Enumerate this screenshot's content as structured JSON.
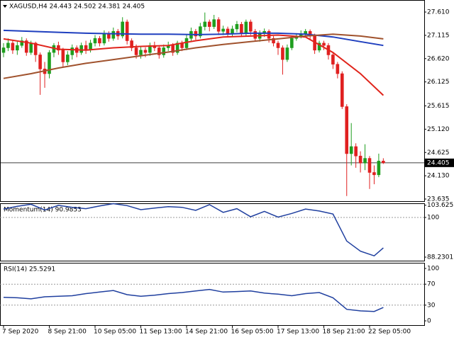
{
  "chart_data": [
    {
      "type": "candlestick",
      "title": "XAGUSD,H4  24.443 24.502 24.381 24.405",
      "up_color": "#1e9e1e",
      "down_color": "#e02020",
      "ylim": [
        23.59,
        27.866
      ],
      "yticks": [
        {
          "value": 27.61,
          "label": "27.610"
        },
        27.115,
        {
          "value": 26.62,
          "label": "26.620"
        },
        26.125,
        25.615,
        {
          "value": 25.12,
          "label": "25.120"
        },
        24.625,
        {
          "value": 24.13,
          "label": "24.130"
        },
        23.635
      ],
      "last_price": 24.405,
      "xticks": [
        {
          "value": 0,
          "label": "7 Sep 2020"
        },
        {
          "value": 10,
          "label": "8 Sep 21:00"
        },
        {
          "value": 20,
          "label": "10 Sep 05:00"
        },
        {
          "value": 30,
          "label": "11 Sep 13:00"
        },
        {
          "value": 40,
          "label": "14 Sep 21:00"
        },
        {
          "value": 50,
          "label": "16 Sep 05:00"
        },
        {
          "value": 60,
          "label": "17 Sep 13:00"
        },
        {
          "value": 70,
          "label": "18 Sep 21:00"
        },
        {
          "value": 80,
          "label": "22 Sep 05:00"
        }
      ],
      "ohlc": [
        [
          26.75,
          26.95,
          26.65,
          26.85
        ],
        [
          26.85,
          27.05,
          26.78,
          26.95
        ],
        [
          26.95,
          27.0,
          26.72,
          26.8
        ],
        [
          26.8,
          26.98,
          26.7,
          26.9
        ],
        [
          26.9,
          27.08,
          26.85,
          27.0
        ],
        [
          27.0,
          27.05,
          26.68,
          26.75
        ],
        [
          26.75,
          27.0,
          26.7,
          26.95
        ],
        [
          26.95,
          26.98,
          26.55,
          26.7
        ],
        [
          26.7,
          26.75,
          25.85,
          26.4
        ],
        [
          26.4,
          26.55,
          26.0,
          26.3
        ],
        [
          26.3,
          26.8,
          26.2,
          26.75
        ],
        [
          26.75,
          26.95,
          26.65,
          26.9
        ],
        [
          26.9,
          26.98,
          26.7,
          26.8
        ],
        [
          26.8,
          26.85,
          26.45,
          26.55
        ],
        [
          26.55,
          26.78,
          26.48,
          26.7
        ],
        [
          26.7,
          26.92,
          26.6,
          26.85
        ],
        [
          26.85,
          26.9,
          26.65,
          26.75
        ],
        [
          26.75,
          26.96,
          26.7,
          26.9
        ],
        [
          26.9,
          27.0,
          26.72,
          26.8
        ],
        [
          26.8,
          27.02,
          26.75,
          26.95
        ],
        [
          26.95,
          27.12,
          26.88,
          27.05
        ],
        [
          27.05,
          27.1,
          26.88,
          26.95
        ],
        [
          26.95,
          27.22,
          26.9,
          27.15
        ],
        [
          27.15,
          27.2,
          26.98,
          27.05
        ],
        [
          27.05,
          27.28,
          27.0,
          27.2
        ],
        [
          27.2,
          27.25,
          27.02,
          27.1
        ],
        [
          27.1,
          27.5,
          27.05,
          27.4
        ],
        [
          27.4,
          27.45,
          26.92,
          27.0
        ],
        [
          27.0,
          27.05,
          26.78,
          26.85
        ],
        [
          26.85,
          26.92,
          26.62,
          26.7
        ],
        [
          26.7,
          26.88,
          26.62,
          26.8
        ],
        [
          26.8,
          26.86,
          26.65,
          26.75
        ],
        [
          26.75,
          26.96,
          26.68,
          26.9
        ],
        [
          26.9,
          26.98,
          26.78,
          26.85
        ],
        [
          26.85,
          26.9,
          26.62,
          26.7
        ],
        [
          26.7,
          26.92,
          26.64,
          26.85
        ],
        [
          26.85,
          26.98,
          26.78,
          26.9
        ],
        [
          26.9,
          26.95,
          26.68,
          26.75
        ],
        [
          26.75,
          27.0,
          26.7,
          26.95
        ],
        [
          26.95,
          27.0,
          26.78,
          26.85
        ],
        [
          26.85,
          27.12,
          26.8,
          27.05
        ],
        [
          27.05,
          27.28,
          27.0,
          27.2
        ],
        [
          27.2,
          27.25,
          27.02,
          27.1
        ],
        [
          27.1,
          27.38,
          27.05,
          27.3
        ],
        [
          27.3,
          27.6,
          27.22,
          27.4
        ],
        [
          27.4,
          27.45,
          27.2,
          27.3
        ],
        [
          27.3,
          27.55,
          27.25,
          27.45
        ],
        [
          27.45,
          27.5,
          27.12,
          27.2
        ],
        [
          27.2,
          27.32,
          27.12,
          27.25
        ],
        [
          27.25,
          27.3,
          27.08,
          27.15
        ],
        [
          27.15,
          27.32,
          27.1,
          27.25
        ],
        [
          27.25,
          27.42,
          27.18,
          27.35
        ],
        [
          27.35,
          27.4,
          27.08,
          27.15
        ],
        [
          27.15,
          27.45,
          27.1,
          27.4
        ],
        [
          27.4,
          27.45,
          27.12,
          27.2
        ],
        [
          27.2,
          27.25,
          26.98,
          27.05
        ],
        [
          27.05,
          27.22,
          26.98,
          27.15
        ],
        [
          27.15,
          27.26,
          27.08,
          27.2
        ],
        [
          27.2,
          27.24,
          26.96,
          27.05
        ],
        [
          27.05,
          27.1,
          26.88,
          26.95
        ],
        [
          26.95,
          27.0,
          26.7,
          26.85
        ],
        [
          26.85,
          26.9,
          26.28,
          26.6
        ],
        [
          26.6,
          26.92,
          26.55,
          26.85
        ],
        [
          26.85,
          27.1,
          26.8,
          27.05
        ],
        [
          27.05,
          27.16,
          27.0,
          27.1
        ],
        [
          27.1,
          27.22,
          27.05,
          27.15
        ],
        [
          27.15,
          27.25,
          27.08,
          27.2
        ],
        [
          27.2,
          27.24,
          27.02,
          27.1
        ],
        [
          27.1,
          27.15,
          26.72,
          26.8
        ],
        [
          26.8,
          27.0,
          26.75,
          26.95
        ],
        [
          26.95,
          27.0,
          26.8,
          26.9
        ],
        [
          26.9,
          26.95,
          26.6,
          26.7
        ],
        [
          26.7,
          26.75,
          26.4,
          26.5
        ],
        [
          26.5,
          26.55,
          26.2,
          26.3
        ],
        [
          26.3,
          26.35,
          25.55,
          25.6
        ],
        [
          25.6,
          25.65,
          23.7,
          24.6
        ],
        [
          24.6,
          25.25,
          24.35,
          24.75
        ],
        [
          24.75,
          24.82,
          24.3,
          24.55
        ],
        [
          24.55,
          24.65,
          24.2,
          24.4
        ],
        [
          24.4,
          24.8,
          24.25,
          24.5
        ],
        [
          24.5,
          24.55,
          23.85,
          24.2
        ],
        [
          24.2,
          24.35,
          23.95,
          24.15
        ],
        [
          24.15,
          24.6,
          24.1,
          24.443
        ],
        [
          24.443,
          24.502,
          24.381,
          24.405
        ]
      ],
      "series": [
        {
          "color": "#1f3fbf",
          "x": [
            0,
            6,
            12,
            18,
            24,
            30,
            36,
            42,
            48,
            54,
            60,
            66,
            72,
            78,
            83
          ],
          "values": [
            27.22,
            27.2,
            27.18,
            27.16,
            27.15,
            27.14,
            27.14,
            27.13,
            27.14,
            27.16,
            27.16,
            27.14,
            27.08,
            26.98,
            26.9
          ]
        },
        {
          "color": "#e0241b",
          "x": [
            0,
            6,
            12,
            18,
            24,
            30,
            36,
            42,
            48,
            54,
            60,
            66,
            72,
            78,
            83
          ],
          "values": [
            27.04,
            26.95,
            26.82,
            26.8,
            26.85,
            26.88,
            26.9,
            27.0,
            27.08,
            27.1,
            27.12,
            27.08,
            26.75,
            26.3,
            25.84
          ]
        },
        {
          "color": "#a0522d",
          "x": [
            0,
            6,
            12,
            18,
            24,
            30,
            36,
            42,
            48,
            54,
            60,
            66,
            72,
            78,
            83
          ],
          "values": [
            26.2,
            26.3,
            26.42,
            26.52,
            26.6,
            26.68,
            26.76,
            26.85,
            26.92,
            26.98,
            27.04,
            27.1,
            27.14,
            27.1,
            27.04
          ]
        }
      ]
    },
    {
      "type": "line",
      "title": "Momentum(14) 90.9853",
      "ylim": [
        87.18,
        104.2
      ],
      "yticks": [
        103.6253,
        100,
        88.2301
      ],
      "levels": [
        100
      ],
      "series": [
        {
          "color": "#1f3f9f",
          "x": [
            0,
            3,
            6,
            9,
            12,
            15,
            18,
            21,
            24,
            27,
            30,
            33,
            36,
            39,
            42,
            45,
            48,
            51,
            54,
            57,
            60,
            63,
            66,
            69,
            72,
            75,
            78,
            81,
            83
          ],
          "values": [
            102.5,
            103.3,
            103.9,
            102.2,
            103.6,
            103.0,
            102.6,
            103.4,
            104.1,
            103.5,
            102.3,
            102.8,
            103.2,
            103.0,
            102.1,
            103.8,
            101.5,
            102.6,
            100.2,
            101.8,
            100.1,
            101.2,
            102.5,
            101.9,
            101.0,
            93.0,
            90.0,
            88.6,
            90.9853
          ]
        }
      ]
    },
    {
      "type": "line",
      "title": "RSI(14) 25.5291",
      "ylim": [
        -8.1,
        110.8
      ],
      "yticks": [
        100,
        70,
        30,
        0
      ],
      "levels": [
        70,
        30
      ],
      "series": [
        {
          "color": "#1f3f9f",
          "x": [
            0,
            3,
            6,
            9,
            12,
            15,
            18,
            21,
            24,
            27,
            30,
            33,
            36,
            39,
            42,
            45,
            48,
            51,
            54,
            57,
            60,
            63,
            66,
            69,
            72,
            75,
            78,
            81,
            83
          ],
          "values": [
            45,
            44,
            42,
            46,
            47,
            48,
            52,
            55,
            58,
            50,
            47,
            49,
            52,
            54,
            57,
            60,
            55,
            56,
            57,
            53,
            51,
            48,
            52,
            54,
            44,
            22,
            19,
            18,
            25.5291
          ]
        }
      ]
    }
  ]
}
